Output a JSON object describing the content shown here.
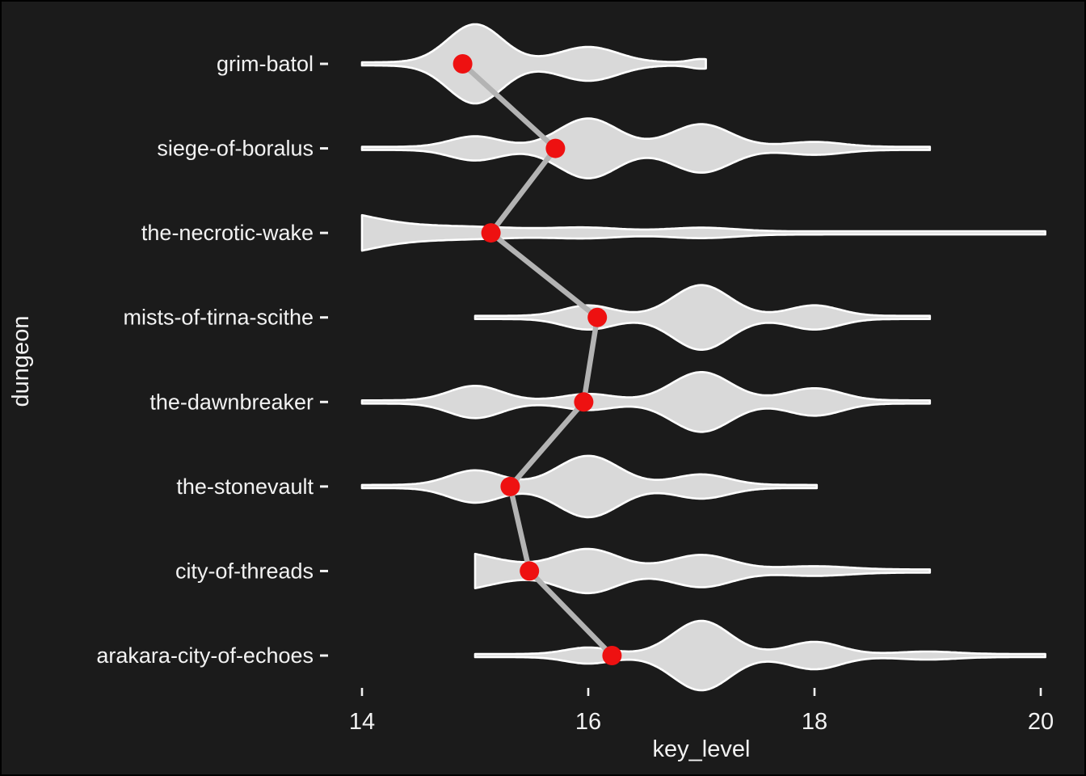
{
  "chart_data": {
    "type": "violin",
    "title": "",
    "xlabel": "key_level",
    "ylabel": "dungeon",
    "x_tick_labels": [
      "14",
      "16",
      "18",
      "20"
    ],
    "x_tick_values": [
      14,
      16,
      18,
      20
    ],
    "xlim": [
      13.85,
      20.25
    ],
    "layout": {
      "grid": false,
      "legend": "none",
      "orientation": "horizontal-violins"
    },
    "colors": {
      "background": "#1b1b1b",
      "violin_fill": "#d9d9d9",
      "violin_stroke": "#ffffff",
      "trend_line": "#b3b3b3",
      "mean_dot": "#ee1111",
      "text": "#f2f2f2"
    },
    "dungeons": [
      {
        "label": "grim-batol",
        "mean_key_level": 14.89,
        "range": [
          14.0,
          17.04
        ],
        "baseline": 2,
        "density_bumps": [
          {
            "key_level": 15.0,
            "amp": 47,
            "sd": 0.24
          },
          {
            "key_level": 16.0,
            "amp": 19,
            "sd": 0.26
          },
          {
            "key_level": 17.0,
            "amp": 4,
            "sd": 0.1
          }
        ]
      },
      {
        "label": "siege-of-boralus",
        "mean_key_level": 15.71,
        "range": [
          14.0,
          19.02
        ],
        "baseline": 2,
        "density_bumps": [
          {
            "key_level": 15.0,
            "amp": 13,
            "sd": 0.22
          },
          {
            "key_level": 16.0,
            "amp": 35,
            "sd": 0.26
          },
          {
            "key_level": 17.0,
            "amp": 28,
            "sd": 0.26
          },
          {
            "key_level": 18.0,
            "amp": 6,
            "sd": 0.25
          }
        ]
      },
      {
        "label": "the-necrotic-wake",
        "mean_key_level": 15.14,
        "range": [
          14.0,
          20.04
        ],
        "baseline": 2,
        "density_bumps": [
          {
            "key_level": 13.6,
            "amp": 26,
            "sd": 0.45
          },
          {
            "key_level": 14.8,
            "amp": 6,
            "sd": 0.6
          },
          {
            "key_level": 16.0,
            "amp": 4,
            "sd": 0.3
          },
          {
            "key_level": 17.0,
            "amp": 4.5,
            "sd": 0.3
          }
        ]
      },
      {
        "label": "mists-of-tirna-scithe",
        "mean_key_level": 16.08,
        "range": [
          15.0,
          19.02
        ],
        "baseline": 2,
        "density_bumps": [
          {
            "key_level": 16.0,
            "amp": 13,
            "sd": 0.22
          },
          {
            "key_level": 17.0,
            "amp": 38,
            "sd": 0.25
          },
          {
            "key_level": 18.0,
            "amp": 13,
            "sd": 0.22
          }
        ]
      },
      {
        "label": "the-dawnbreaker",
        "mean_key_level": 15.96,
        "range": [
          14.0,
          19.02
        ],
        "baseline": 2,
        "density_bumps": [
          {
            "key_level": 15.0,
            "amp": 18,
            "sd": 0.23
          },
          {
            "key_level": 16.0,
            "amp": 8,
            "sd": 0.22
          },
          {
            "key_level": 17.0,
            "amp": 35,
            "sd": 0.26
          },
          {
            "key_level": 18.0,
            "amp": 15,
            "sd": 0.24
          }
        ]
      },
      {
        "label": "the-stonevault",
        "mean_key_level": 15.31,
        "range": [
          14.0,
          18.02
        ],
        "baseline": 2,
        "density_bumps": [
          {
            "key_level": 15.0,
            "amp": 18,
            "sd": 0.23
          },
          {
            "key_level": 16.0,
            "amp": 36,
            "sd": 0.27
          },
          {
            "key_level": 17.0,
            "amp": 13,
            "sd": 0.24
          }
        ]
      },
      {
        "label": "city-of-threads",
        "mean_key_level": 15.48,
        "range": [
          15.0,
          19.02
        ],
        "baseline": 2,
        "density_bumps": [
          {
            "key_level": 14.7,
            "amp": 24,
            "sd": 0.45
          },
          {
            "key_level": 16.0,
            "amp": 25,
            "sd": 0.27
          },
          {
            "key_level": 17.0,
            "amp": 18,
            "sd": 0.27
          },
          {
            "key_level": 18.0,
            "amp": 4,
            "sd": 0.3
          }
        ]
      },
      {
        "label": "arakara-city-of-echoes",
        "mean_key_level": 16.21,
        "range": [
          15.0,
          20.04
        ],
        "baseline": 2,
        "density_bumps": [
          {
            "key_level": 16.0,
            "amp": 8,
            "sd": 0.2
          },
          {
            "key_level": 17.0,
            "amp": 41,
            "sd": 0.25
          },
          {
            "key_level": 18.0,
            "amp": 15,
            "sd": 0.23
          },
          {
            "key_level": 19.0,
            "amp": 3,
            "sd": 0.25
          }
        ]
      }
    ]
  }
}
